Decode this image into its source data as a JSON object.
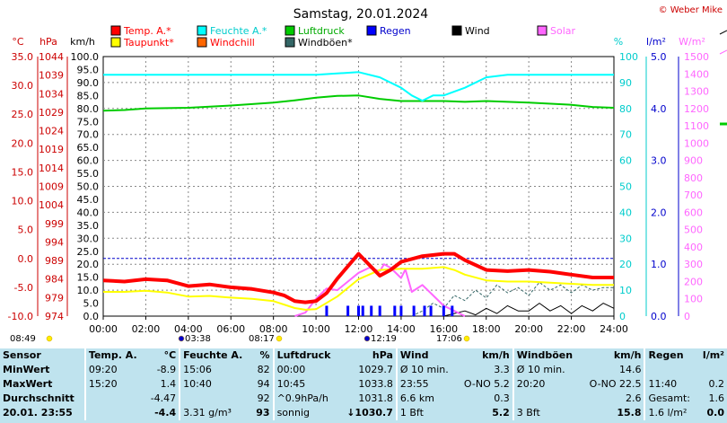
{
  "chart_data": {
    "type": "line",
    "title": "Samstag, 20.01.2024",
    "copyright": "© Weber Mike",
    "x_ticks": [
      "00:00",
      "02:00",
      "04:00",
      "06:00",
      "08:00",
      "10:00",
      "12:00",
      "14:00",
      "16:00",
      "18:00",
      "20:00",
      "22:00",
      "24:00"
    ],
    "axes": {
      "temp": {
        "unit": "°C",
        "ticks": [
          "35.0",
          "30.0",
          "25.0",
          "20.0",
          "15.0",
          "10.0",
          "5.0",
          "0.0",
          "-5.0",
          "-10.0"
        ],
        "range": [
          -10,
          35
        ],
        "color": "#ff0000"
      },
      "pressure": {
        "unit": "hPa",
        "ticks": [
          "1044",
          "1039",
          "1034",
          "1029",
          "1024",
          "1019",
          "1014",
          "1009",
          "1004",
          "999",
          "994",
          "989",
          "984",
          "979",
          "974"
        ],
        "range": [
          974,
          1044
        ],
        "color": "#ff0000"
      },
      "wind": {
        "unit": "km/h",
        "ticks": [
          "100.0",
          "95.0",
          "90.0",
          "85.0",
          "80.0",
          "75.0",
          "70.0",
          "65.0",
          "60.0",
          "55.0",
          "50.0",
          "45.0",
          "40.0",
          "35.0",
          "30.0",
          "25.0",
          "20.0",
          "15.0",
          "10.0",
          "5.0",
          "0.0"
        ],
        "range": [
          0,
          100
        ],
        "color": "#000000"
      },
      "humidity": {
        "unit": "%",
        "ticks": [
          "100",
          "90",
          "80",
          "70",
          "60",
          "50",
          "40",
          "30",
          "20",
          "10",
          "0"
        ],
        "range": [
          0,
          100
        ],
        "color": "#00cccc"
      },
      "rain": {
        "unit": "l/m²",
        "ticks": [
          "5.0",
          "4.0",
          "3.0",
          "2.0",
          "1.0",
          "0.0"
        ],
        "range": [
          0,
          5
        ],
        "color": "#0000cc"
      },
      "solar": {
        "unit": "W/m²",
        "ticks": [
          "1500",
          "1400",
          "1300",
          "1200",
          "1100",
          "1000",
          "900",
          "800",
          "700",
          "600",
          "500",
          "400",
          "300",
          "200",
          "100",
          "0"
        ],
        "range": [
          0,
          1500
        ],
        "color": "#ff66ff"
      }
    },
    "legend": [
      {
        "name": "Temp. A.*",
        "color": "#ff0000"
      },
      {
        "name": "Feuchte A.*",
        "color": "#00ffff"
      },
      {
        "name": "Luftdruck",
        "color": "#00cc00"
      },
      {
        "name": "Regen",
        "color": "#0000ff"
      },
      {
        "name": "Wind",
        "color": "#000000"
      },
      {
        "name": "Solar",
        "color": "#ff66ff"
      },
      {
        "name": "Taupunkt*",
        "color": "#ffff00"
      },
      {
        "name": "Windchill",
        "color": "#ff6600"
      },
      {
        "name": "Windböen*",
        "color": "#336666"
      }
    ],
    "series": [
      {
        "name": "Temp. A.*",
        "axis": "temp",
        "color": "#ff0000",
        "x": [
          0,
          1,
          2,
          3,
          4,
          5,
          6,
          7,
          8,
          8.5,
          9,
          9.5,
          10,
          10.5,
          11,
          12,
          13,
          13.5,
          14,
          15,
          16,
          16.5,
          17,
          18,
          19,
          20,
          21,
          22,
          23,
          24
        ],
        "y": [
          -3.8,
          -4.0,
          -3.6,
          -3.8,
          -4.8,
          -4.5,
          -5.0,
          -5.3,
          -5.9,
          -6.4,
          -7.4,
          -7.6,
          -7.4,
          -6.0,
          -3.5,
          0.8,
          -3.0,
          -2.0,
          -0.6,
          0.4,
          0.8,
          0.8,
          -0.3,
          -2.0,
          -2.2,
          -2.0,
          -2.3,
          -2.8,
          -3.3,
          -3.3
        ]
      },
      {
        "name": "Taupunkt*",
        "axis": "temp",
        "color": "#ffff00",
        "x": [
          0,
          1,
          2,
          3,
          4,
          5,
          6,
          7,
          8,
          9,
          9.5,
          10,
          11,
          12,
          13,
          14,
          15,
          16,
          16.5,
          17,
          18,
          19,
          20,
          21,
          22,
          23,
          24
        ],
        "y": [
          -5.8,
          -5.8,
          -5.6,
          -5.9,
          -6.6,
          -6.5,
          -6.8,
          -7.0,
          -7.4,
          -8.6,
          -8.9,
          -8.8,
          -6.6,
          -3.6,
          -2.0,
          -1.8,
          -1.8,
          -1.5,
          -2.0,
          -2.8,
          -3.8,
          -4.0,
          -4.0,
          -4.2,
          -4.4,
          -4.6,
          -4.6
        ]
      },
      {
        "name": "Feuchte A.*",
        "axis": "humidity",
        "color": "#00ffff",
        "x": [
          0,
          2,
          4,
          6,
          8,
          9,
          10,
          11,
          12,
          13,
          14,
          14.5,
          15,
          15.5,
          16,
          17,
          18,
          19,
          20,
          22,
          24
        ],
        "y": [
          93,
          93,
          93,
          93,
          93,
          93,
          93,
          93.5,
          94,
          92,
          88,
          85,
          83,
          85,
          85,
          88,
          92,
          93,
          93,
          93,
          93
        ]
      },
      {
        "name": "Luftdruck",
        "axis": "pressure",
        "color": "#00cc00",
        "x": [
          0,
          1,
          2,
          4,
          6,
          8,
          9,
          10,
          11,
          12,
          13,
          14,
          16,
          17,
          18,
          20,
          22,
          23,
          24
        ],
        "y": [
          1029.4,
          1029.6,
          1030,
          1030.2,
          1030.8,
          1031.6,
          1032.2,
          1032.9,
          1033.4,
          1033.5,
          1032.6,
          1032.0,
          1032.0,
          1031.8,
          1032.0,
          1031.6,
          1031.0,
          1030.4,
          1030.2
        ]
      },
      {
        "name": "Solar",
        "axis": "solar",
        "color": "#ff66ff",
        "x": [
          9,
          9.5,
          10,
          10.5,
          11,
          11.5,
          12,
          12.5,
          13,
          13.2,
          13.5,
          14,
          14.2,
          14.5,
          15,
          15.5,
          16,
          16.5,
          17
        ],
        "y": [
          0,
          20,
          100,
          160,
          150,
          200,
          250,
          280,
          260,
          300,
          280,
          220,
          270,
          140,
          180,
          120,
          60,
          30,
          0
        ]
      },
      {
        "name": "Windböen*",
        "axis": "wind",
        "color": "#336666",
        "x": [
          14.5,
          15,
          15.5,
          16,
          16.5,
          17,
          17.5,
          18,
          18.5,
          19,
          19.5,
          20,
          20.5,
          21,
          21.5,
          22,
          22.5,
          23,
          23.5,
          24
        ],
        "y": [
          0,
          2,
          5,
          3,
          8,
          6,
          10,
          7,
          12,
          9,
          11,
          8,
          13,
          10,
          12,
          9,
          12,
          10,
          11,
          11
        ]
      },
      {
        "name": "Wind",
        "axis": "wind",
        "color": "#000000",
        "x": [
          16,
          16.5,
          17,
          17.5,
          18,
          18.5,
          19,
          19.5,
          20,
          20.5,
          21,
          21.5,
          22,
          22.5,
          23,
          23.5,
          24
        ],
        "y": [
          0,
          1,
          2,
          0.5,
          3,
          1,
          4,
          2,
          2,
          5,
          2,
          4,
          1,
          4,
          2,
          5,
          3
        ]
      },
      {
        "name": "Regen",
        "axis": "rain",
        "color": "#0000ff",
        "type": "bar",
        "x": [
          10.5,
          11.5,
          12,
          12.2,
          12.6,
          13,
          13.7,
          14,
          14.6,
          15.1,
          15.4,
          16,
          16.4
        ],
        "y": [
          0.2,
          0.2,
          0.2,
          0.2,
          0.2,
          0.2,
          0.2,
          0.2,
          0.2,
          0.2,
          0.2,
          0.2,
          0.2
        ]
      }
    ],
    "reference_line": {
      "axis": "temp",
      "value": 0.0,
      "color": "#0000cc"
    },
    "sun_markers": [
      {
        "label": "08:49",
        "kind": "sunrise"
      },
      {
        "label": "03:38",
        "kind": "moonrise"
      },
      {
        "label": "08:17",
        "kind": "sun"
      },
      {
        "label": "12:19",
        "kind": "moonset"
      },
      {
        "label": "17:06",
        "kind": "sunset"
      }
    ]
  },
  "stats": {
    "header": [
      "Sensor",
      "Temp. A.",
      "°C",
      "Feuchte A.",
      "%",
      "Luftdruck",
      "hPa",
      "Wind",
      "km/h",
      "Windböen",
      "km/h",
      "Regen",
      "l/m²"
    ],
    "rows": [
      [
        "MinWert",
        "09:20",
        "-8.9",
        "15:06",
        "82",
        "00:00",
        "1029.7",
        "Ø 10 min.",
        "3.3",
        "Ø 10 min.",
        "14.6",
        "",
        ""
      ],
      [
        "MaxWert",
        "15:20",
        "1.4",
        "10:40",
        "94",
        "10:45",
        "1033.8",
        "23:55",
        "O-NO 5.2",
        "20:20",
        "O-NO 22.5",
        "11:40",
        "0.2"
      ],
      [
        "Durchschnitt",
        "",
        "-4.47",
        "",
        "92",
        "^0.9hPa/h",
        "1031.8",
        "6.6 km",
        "0.3",
        "",
        "2.6",
        "Gesamt:",
        "1.6"
      ],
      [
        "20.01. 23:55",
        "",
        "-4.4",
        "3.31 g/m³",
        "93",
        "sonnig",
        "↓1030.7",
        "1 Bft",
        "5.2",
        "3 Bft",
        "15.8",
        "1.6 l/m²",
        "0.0"
      ]
    ]
  }
}
